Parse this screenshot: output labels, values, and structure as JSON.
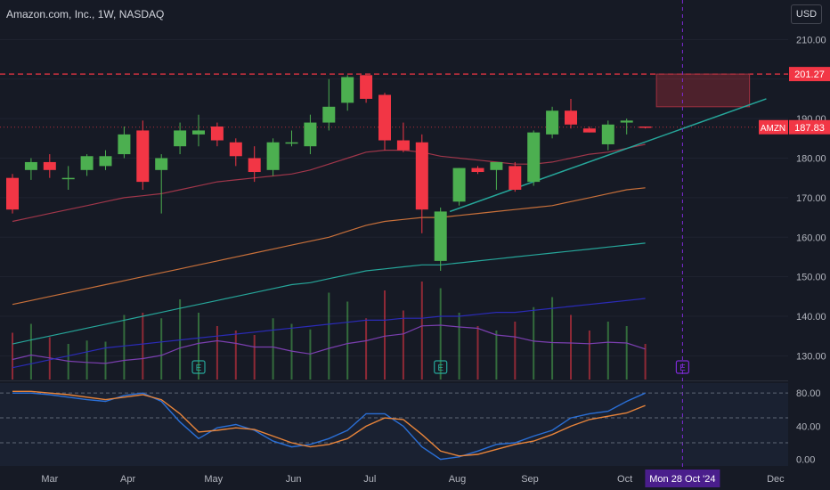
{
  "header": {
    "title": "Amazon.com, Inc., 1W, NASDAQ",
    "currency": "USD"
  },
  "colors": {
    "bg": "#161a25",
    "up": "#4caf50",
    "down": "#f23645",
    "text": "#b2b5be",
    "resistance": "#f23645",
    "trendline": "#26a69a",
    "ema20": "#a0364a",
    "ema50": "#c8703a",
    "ema100": "#26a69a",
    "ema200": "#2b2bb8",
    "volumeLine": "#7b3fb0",
    "stochK": "#2a6fd6",
    "stochD": "#e8843a",
    "earningsHighlight": "#7d2ad6",
    "dateTagBg": "#4a1e8c"
  },
  "chart_data": [
    {
      "type": "candlestick",
      "title": "Amazon.com, Inc., 1W, NASDAQ",
      "ylim": [
        124,
        220
      ],
      "yticks": [
        130,
        140,
        150,
        160,
        170,
        180,
        190,
        200,
        210
      ],
      "x_labels": [
        "Mar",
        "Apr",
        "May",
        "Jun",
        "Jul",
        "Aug",
        "Sep",
        "Oct",
        "Dec"
      ],
      "date_tag": "Mon 28 Oct '24",
      "price_labels": [
        {
          "label": "",
          "value": "201.27"
        },
        {
          "label": "AMZN",
          "value": "187.83"
        }
      ],
      "resistance_level": 201.27,
      "last_price": 187.83,
      "candles": [
        {
          "o": 175.0,
          "h": 176.0,
          "l": 166.0,
          "c": 167.0
        },
        {
          "o": 177.0,
          "h": 180.0,
          "l": 174.5,
          "c": 179.0
        },
        {
          "o": 179.0,
          "h": 181.0,
          "l": 175.0,
          "c": 177.0
        },
        {
          "o": 175.0,
          "h": 178.0,
          "l": 172.0,
          "c": 175.0
        },
        {
          "o": 177.0,
          "h": 181.0,
          "l": 175.5,
          "c": 180.5
        },
        {
          "o": 178.0,
          "h": 182.0,
          "l": 177.0,
          "c": 180.5
        },
        {
          "o": 181.0,
          "h": 188.0,
          "l": 180.0,
          "c": 186.0
        },
        {
          "o": 187.0,
          "h": 189.5,
          "l": 172.0,
          "c": 174.0
        },
        {
          "o": 177.0,
          "h": 181.0,
          "l": 166.0,
          "c": 180.0
        },
        {
          "o": 183.0,
          "h": 189.0,
          "l": 181.0,
          "c": 187.0
        },
        {
          "o": 186.0,
          "h": 191.0,
          "l": 183.0,
          "c": 187.0
        },
        {
          "o": 188.0,
          "h": 189.0,
          "l": 183.0,
          "c": 184.5
        },
        {
          "o": 184.0,
          "h": 185.0,
          "l": 178.0,
          "c": 180.5
        },
        {
          "o": 180.0,
          "h": 183.0,
          "l": 174.0,
          "c": 176.5
        },
        {
          "o": 177.0,
          "h": 185.0,
          "l": 175.5,
          "c": 184.0
        },
        {
          "o": 184.0,
          "h": 187.0,
          "l": 183.0,
          "c": 184.0
        },
        {
          "o": 183.0,
          "h": 191.0,
          "l": 181.0,
          "c": 189.0
        },
        {
          "o": 189.0,
          "h": 200.0,
          "l": 187.0,
          "c": 193.0
        },
        {
          "o": 194.0,
          "h": 201.0,
          "l": 192.0,
          "c": 200.5
        },
        {
          "o": 201.0,
          "h": 201.0,
          "l": 194.0,
          "c": 195.0
        },
        {
          "o": 196.0,
          "h": 196.5,
          "l": 182.0,
          "c": 184.5
        },
        {
          "o": 184.5,
          "h": 189.0,
          "l": 181.5,
          "c": 182.0
        },
        {
          "o": 184.0,
          "h": 186.0,
          "l": 161.0,
          "c": 167.0
        },
        {
          "o": 154.0,
          "h": 167.5,
          "l": 151.5,
          "c": 166.5
        },
        {
          "o": 169.0,
          "h": 177.5,
          "l": 168.0,
          "c": 177.5
        },
        {
          "o": 177.5,
          "h": 178.0,
          "l": 176.0,
          "c": 176.5
        },
        {
          "o": 177.0,
          "h": 179.0,
          "l": 172.0,
          "c": 179.0
        },
        {
          "o": 178.0,
          "h": 179.0,
          "l": 171.5,
          "c": 172.0
        },
        {
          "o": 174.0,
          "h": 187.0,
          "l": 173.0,
          "c": 186.5
        },
        {
          "o": 186.0,
          "h": 193.0,
          "l": 185.0,
          "c": 192.0
        },
        {
          "o": 192.0,
          "h": 195.0,
          "l": 187.5,
          "c": 188.5
        },
        {
          "o": 187.5,
          "h": 188.0,
          "l": 186.5,
          "c": 186.5
        },
        {
          "o": 183.5,
          "h": 189.5,
          "l": 182.0,
          "c": 188.5
        },
        {
          "o": 189.0,
          "h": 190.0,
          "l": 186.0,
          "c": 189.5
        },
        {
          "o": 188.0,
          "h": 188.0,
          "l": 187.5,
          "c": 187.83
        }
      ],
      "ema_series": [
        {
          "values": [
            164,
            165,
            166,
            167,
            168,
            169,
            170,
            170.5,
            171,
            172,
            173,
            174,
            174.5,
            175,
            175.5,
            176,
            177,
            178.5,
            180,
            181.5,
            182,
            182,
            181.5,
            180.5,
            180,
            179.5,
            179,
            178.5,
            178.5,
            179,
            180,
            181,
            181.5,
            182.5,
            183.5
          ]
        },
        {
          "values": [
            143,
            144,
            145,
            146,
            147,
            148,
            149,
            150,
            151,
            152,
            153,
            154,
            155,
            156,
            157,
            158,
            159,
            160,
            161.5,
            163,
            164,
            164.5,
            165,
            165,
            165.5,
            166,
            166.5,
            167,
            167.5,
            168,
            169,
            170,
            171,
            172,
            172.5
          ]
        },
        {
          "values": [
            133,
            134,
            135,
            136,
            137,
            138,
            139,
            140,
            141,
            142,
            143,
            144,
            145,
            146,
            147,
            148,
            148.5,
            149.5,
            150.5,
            151.5,
            152,
            152.5,
            153,
            153,
            153.5,
            154,
            154.5,
            155,
            155.5,
            156,
            156.5,
            157,
            157.5,
            158,
            158.5
          ]
        },
        {
          "values": [
            127,
            128,
            129,
            130,
            131,
            132,
            132.5,
            133,
            133.5,
            134,
            134.5,
            135,
            135.5,
            136,
            136.5,
            137,
            137.5,
            138,
            138.5,
            139,
            139,
            139.5,
            139.5,
            140,
            140,
            140.5,
            141,
            141,
            141.5,
            142,
            142.5,
            143,
            143.5,
            144,
            144.5
          ]
        }
      ],
      "trendline": {
        "from": {
          "index": 23.5,
          "value": 166.5
        },
        "to": {
          "index": 40.5,
          "value": 195.0
        }
      },
      "projection_box": {
        "from_index": 34.6,
        "to_index": 39.6,
        "top": 201.27,
        "bottom": 193.0
      },
      "volume": [
        42,
        50,
        38,
        32,
        35,
        34,
        58,
        60,
        55,
        72,
        60,
        48,
        44,
        40,
        55,
        50,
        45,
        78,
        70,
        55,
        80,
        62,
        88,
        82,
        60,
        48,
        44,
        52,
        65,
        74,
        58,
        44,
        52,
        48,
        32
      ],
      "earnings_markers": [
        {
          "index": 10,
          "label": "E"
        },
        {
          "index": 23,
          "label": "E"
        },
        {
          "index": 36,
          "label": "E"
        }
      ],
      "current_index": 36
    },
    {
      "type": "line",
      "ylim": [
        -8,
        92
      ],
      "yticks": [
        0,
        40,
        80
      ],
      "ytick_labels": [
        "0.00",
        "40.00",
        "80.00"
      ],
      "levels": [
        20,
        50,
        80
      ],
      "series": [
        {
          "values": [
            80,
            80,
            78,
            75,
            72,
            70,
            77,
            80,
            70,
            45,
            25,
            38,
            42,
            35,
            22,
            15,
            18,
            25,
            35,
            55,
            55,
            40,
            15,
            0,
            3,
            10,
            18,
            20,
            28,
            35,
            50,
            55,
            58,
            70,
            80
          ]
        },
        {
          "values": [
            82,
            82,
            80,
            78,
            75,
            72,
            75,
            78,
            72,
            55,
            33,
            35,
            38,
            36,
            28,
            20,
            15,
            18,
            25,
            40,
            50,
            48,
            30,
            10,
            4,
            6,
            12,
            18,
            22,
            30,
            40,
            48,
            52,
            56,
            65
          ]
        }
      ]
    }
  ]
}
